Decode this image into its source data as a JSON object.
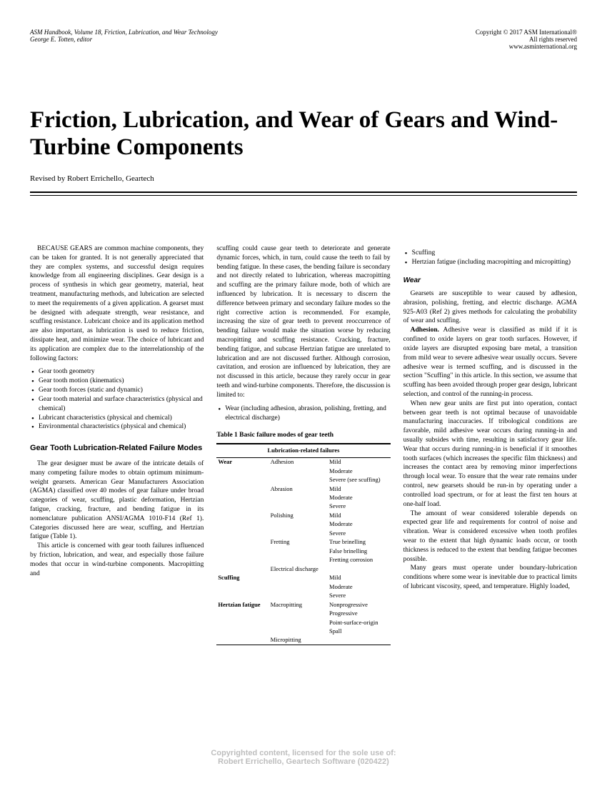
{
  "header": {
    "left_line1": "ASM Handbook, Volume 18, Friction, Lubrication, and Wear Technology",
    "left_line2": "George E. Totten, editor",
    "right_line1": "Copyright © 2017 ASM International®",
    "right_line2": "All rights reserved",
    "right_line3": "www.asminternational.org"
  },
  "title": "Friction, Lubrication, and Wear of Gears and Wind-Turbine Components",
  "author": "Revised by Robert Errichello, Geartech",
  "col1": {
    "intro": "BECAUSE GEARS are common machine components, they can be taken for granted. It is not generally appreciated that they are complex systems, and successful design requires knowledge from all engineering disciplines. Gear design is a process of synthesis in which gear geometry, material, heat treatment, manufacturing methods, and lubrication are selected to meet the requirements of a given application. A gearset must be designed with adequate strength, wear resistance, and scuffing resistance. Lubricant choice and its application method are also important, as lubrication is used to reduce friction, dissipate heat, and minimize wear. The choice of lubricant and its application are complex due to the interrelationship of the following factors:",
    "factors": [
      "Gear tooth geometry",
      "Gear tooth motion (kinematics)",
      "Gear tooth forces (static and dynamic)",
      "Gear tooth material and surface characteristics (physical and chemical)",
      "Lubricant characteristics (physical and chemical)",
      "Environmental characteristics (physical and chemical)"
    ],
    "section_head": "Gear Tooth Lubrication-Related Failure Modes",
    "p2": "The gear designer must be aware of the intricate details of many competing failure modes to obtain optimum minimum-weight gearsets. American Gear Manufacturers Association (AGMA) classified over 40 modes of gear failure under broad categories of wear, scuffing, plastic deformation, Hertzian fatigue, cracking, fracture, and bending fatigue in its nomenclature publication ANSI/AGMA 1010-F14 (Ref 1). Categories discussed here are wear, scuffing, and Hertzian fatigue (Table 1).",
    "p3": "This article is concerned with gear tooth failures influenced by friction, lubrication, and wear, and especially those failure modes that occur in wind-turbine components. Macropitting and"
  },
  "col2": {
    "p1": "scuffing could cause gear teeth to deteriorate and generate dynamic forces, which, in turn, could cause the teeth to fail by bending fatigue. In these cases, the bending failure is secondary and not directly related to lubrication, whereas macropitting and scuffing are the primary failure mode, both of which are influenced by lubrication. It is necessary to discern the difference between primary and secondary failure modes so the right corrective action is recommended. For example, increasing the size of gear teeth to prevent reoccurrence of bending failure would make the situation worse by reducing macropitting and scuffing resistance. Cracking, fracture, bending fatigue, and subcase Hertzian fatigue are unrelated to lubrication and are not discussed further. Although corrosion, cavitation, and erosion are influenced by lubrication, they are not discussed in this article, because they rarely occur in gear teeth and wind-turbine components. Therefore, the discussion is limited to:",
    "limits": [
      "Wear (including adhesion, abrasion, polishing, fretting, and electrical discharge)"
    ],
    "table_title": "Table 1   Basic failure modes of gear teeth",
    "table": {
      "banner": "Lubrication-related failures",
      "rows": [
        {
          "cat": "Wear",
          "mode": "Adhesion",
          "degs": [
            "Mild",
            "Moderate",
            "Severe (see scuffing)"
          ]
        },
        {
          "cat": "",
          "mode": "Abrasion",
          "degs": [
            "Mild",
            "Moderate",
            "Severe"
          ]
        },
        {
          "cat": "",
          "mode": "Polishing",
          "degs": [
            "Mild",
            "Moderate",
            "Severe"
          ]
        },
        {
          "cat": "",
          "mode": "Fretting",
          "degs": [
            "True brinelling",
            "False brinelling",
            "Fretting corrosion"
          ]
        },
        {
          "cat": "",
          "mode": "Electrical discharge",
          "degs": [
            ""
          ]
        },
        {
          "cat": "Scuffing",
          "mode": "",
          "degs": [
            "Mild",
            "Moderate",
            "Severe"
          ]
        },
        {
          "cat": "Hertzian fatigue",
          "mode": "Macropitting",
          "degs": [
            "Nonprogressive",
            "Progressive",
            "Point-surface-origin",
            "Spall"
          ]
        },
        {
          "cat": "",
          "mode": "Micropitting",
          "degs": [
            ""
          ]
        }
      ]
    }
  },
  "col3": {
    "bullets": [
      "Scuffing",
      "Hertzian fatigue (including macropitting and micropitting)"
    ],
    "sub_head": "Wear",
    "p1": "Gearsets are susceptible to wear caused by adhesion, abrasion, polishing, fretting, and electric discharge. AGMA 925-A03 (Ref 2) gives methods for calculating the probability of wear and scuffing.",
    "adh_head": "Adhesion.",
    "p2": " Adhesive wear is classified as mild if it is confined to oxide layers on gear tooth surfaces. However, if oxide layers are disrupted exposing bare metal, a transition from mild wear to severe adhesive wear usually occurs. Severe adhesive wear is termed scuffing, and is discussed in the section \"Scuffing\" in this article. In this section, we assume that scuffing has been avoided through proper gear design, lubricant selection, and control of the running-in process.",
    "p3": "When new gear units are first put into operation, contact between gear teeth is not optimal because of unavoidable manufacturing inaccuracies. If tribological conditions are favorable, mild adhesive wear occurs during running-in and usually subsides with time, resulting in satisfactory gear life. Wear that occurs during running-in is beneficial if it smoothes tooth surfaces (which increases the specific film thickness) and increases the contact area by removing minor imperfections through local wear. To ensure that the wear rate remains under control, new gearsets should be run-in by operating under a controlled load spectrum, or for at least the first ten hours at one-half load.",
    "p4": "The amount of wear considered tolerable depends on expected gear life and requirements for control of noise and vibration. Wear is considered excessive when tooth profiles wear to the extent that high dynamic loads occur, or tooth thickness is reduced to the extent that bending fatigue becomes possible.",
    "p5": "Many gears must operate under boundary-lubrication conditions where some wear is inevitable due to practical limits of lubricant viscosity, speed, and temperature. Highly loaded,"
  },
  "footer": {
    "line1": "Copyrighted content, licensed for the sole use of:",
    "line2": "Robert Errichello, Geartech Software (020422)"
  }
}
